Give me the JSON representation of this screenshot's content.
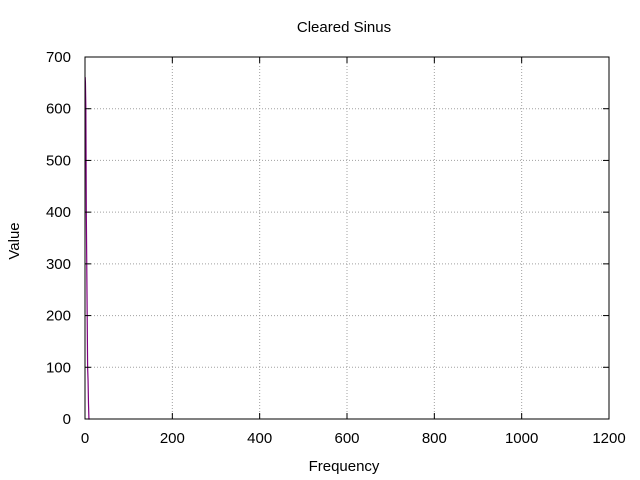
{
  "chart_data": {
    "type": "line",
    "title": "Cleared Sinus",
    "xlabel": "Frequency",
    "ylabel": "Value",
    "xlim": [
      0,
      1200
    ],
    "ylim": [
      0,
      700
    ],
    "xticks": [
      0,
      200,
      400,
      600,
      800,
      1000,
      1200
    ],
    "yticks": [
      0,
      100,
      200,
      300,
      400,
      500,
      600,
      700
    ],
    "grid": true,
    "legend": "none",
    "series": [
      {
        "color": "#800080",
        "x": [
          0,
          0.5,
          1,
          2,
          3,
          4,
          5,
          6,
          7,
          8,
          9,
          10,
          11
        ],
        "y": [
          660,
          660,
          650,
          600,
          400,
          300,
          200,
          100,
          75,
          30,
          0,
          0,
          0
        ]
      }
    ]
  }
}
